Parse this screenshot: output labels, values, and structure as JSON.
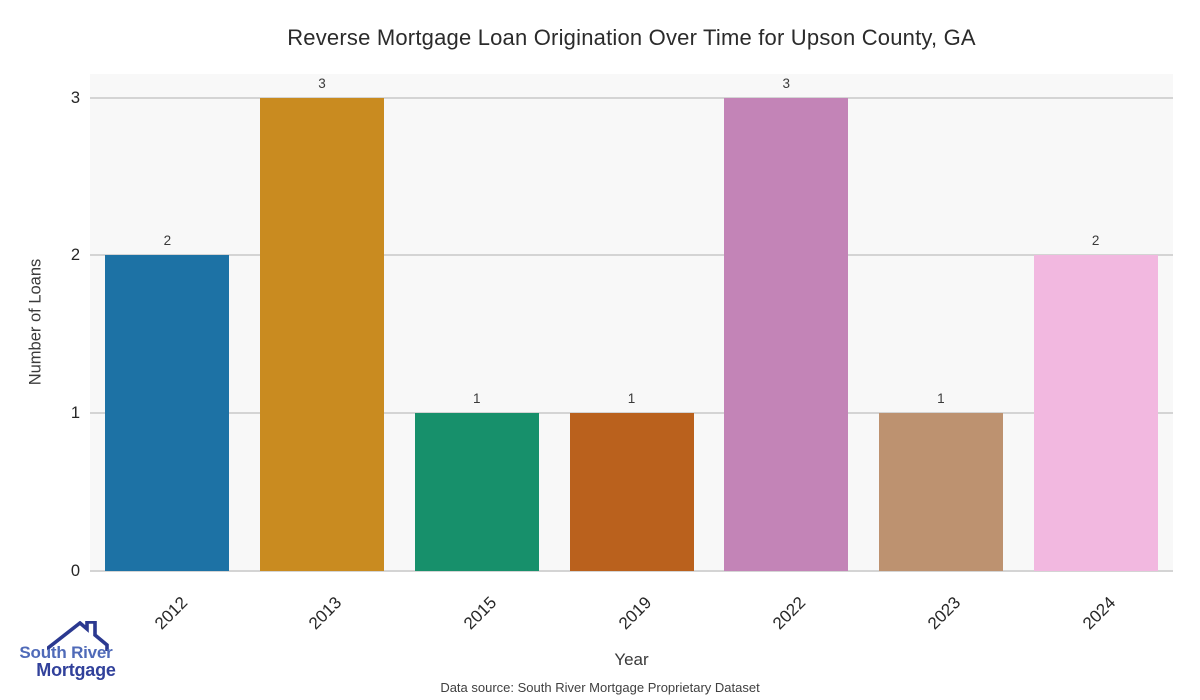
{
  "title": "Reverse Mortgage Loan Origination Over Time for Upson County, GA",
  "footer": {
    "data_source": "Data source: South River Mortgage Proprietary Dataset"
  },
  "logo": {
    "line1": "South River",
    "line2": "Mortgage",
    "icon": "house-roof-icon",
    "line1_color": "#4f6ab8",
    "line2_color": "#31419b",
    "icon_color": "#2b3990"
  },
  "chart_data": {
    "type": "bar",
    "title": "Reverse Mortgage Loan Origination Over Time for Upson County, GA",
    "categories": [
      "2012",
      "2013",
      "2015",
      "2019",
      "2022",
      "2023",
      "2024"
    ],
    "values": [
      2,
      3,
      1,
      1,
      3,
      1,
      2
    ],
    "bar_colors": [
      "#1d72a5",
      "#c98b20",
      "#17906b",
      "#ba611d",
      "#c384b7",
      "#bd9270",
      "#f2b8e0"
    ],
    "xlabel": "Year",
    "ylabel": "Number of Loans",
    "yticks": [
      0,
      1,
      2,
      3
    ],
    "ylim": [
      0,
      3.15
    ],
    "grid": true,
    "legend": false,
    "plot_bg_color": "#f8f8f8",
    "grid_color": "#d4d4d4"
  }
}
